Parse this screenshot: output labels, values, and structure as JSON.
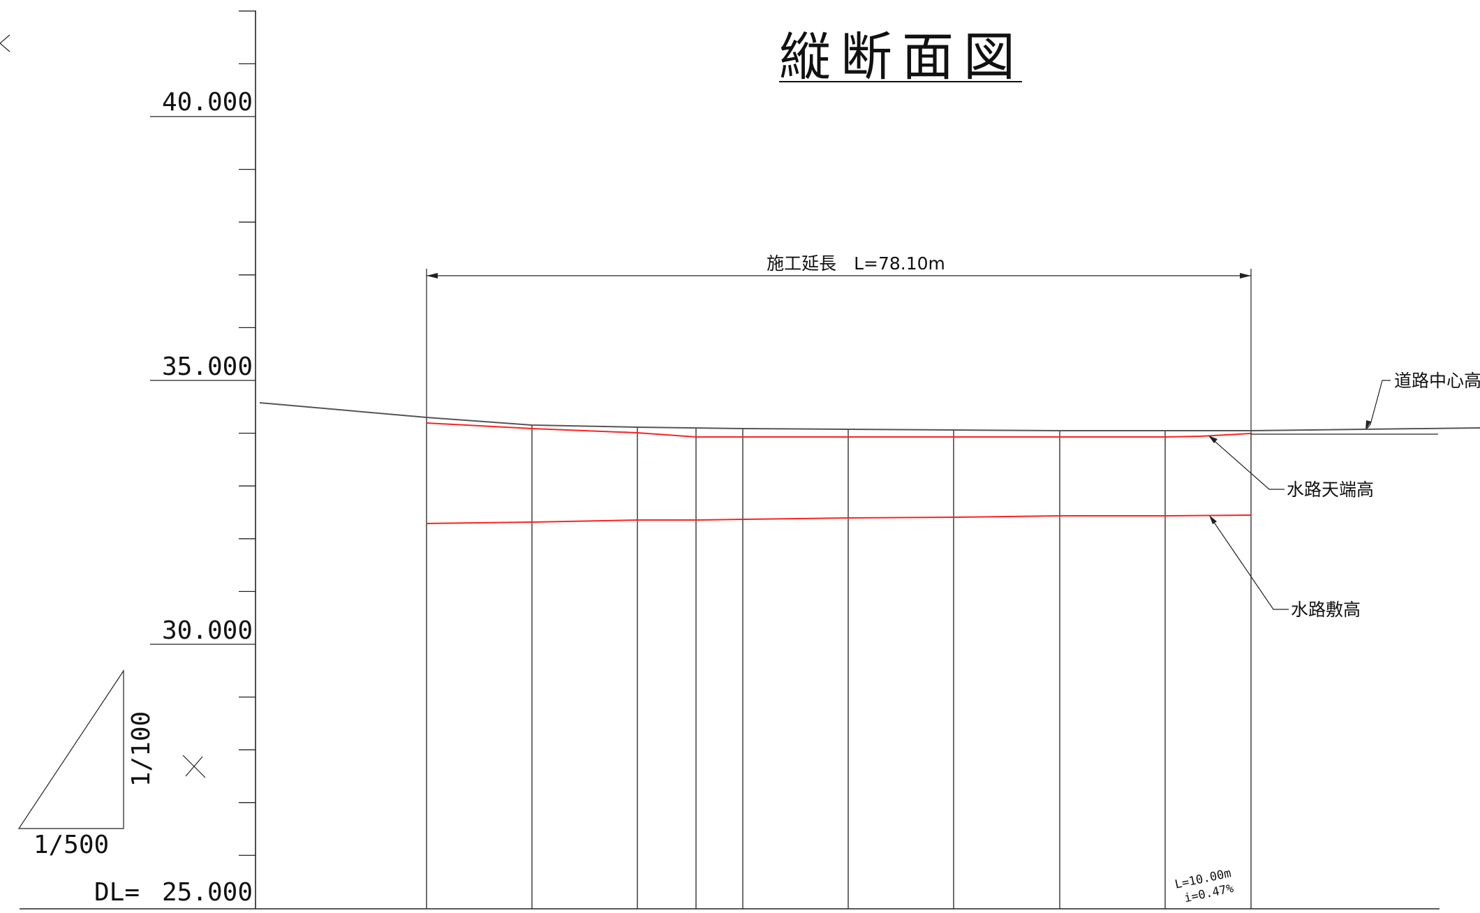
{
  "title": "縦断面図",
  "elevation_axis": {
    "labels": [
      "40.000",
      "35.000",
      "30.000",
      "25.000"
    ],
    "datum_label": "DL="
  },
  "scale_indicator": {
    "horizontal": "1/500",
    "vertical": "1/100"
  },
  "dimension": {
    "label": "施工延長　L=78.10m"
  },
  "leaders": {
    "road_center": "道路中心高",
    "channel_top": "水路天端高",
    "channel_bed": "水路敷高"
  },
  "segment_note": {
    "length": "L=10.00m",
    "gradient": "i=0.47%"
  },
  "colors": {
    "line": "#222222",
    "profile_red": "#ff2020",
    "road": "#555555"
  }
}
